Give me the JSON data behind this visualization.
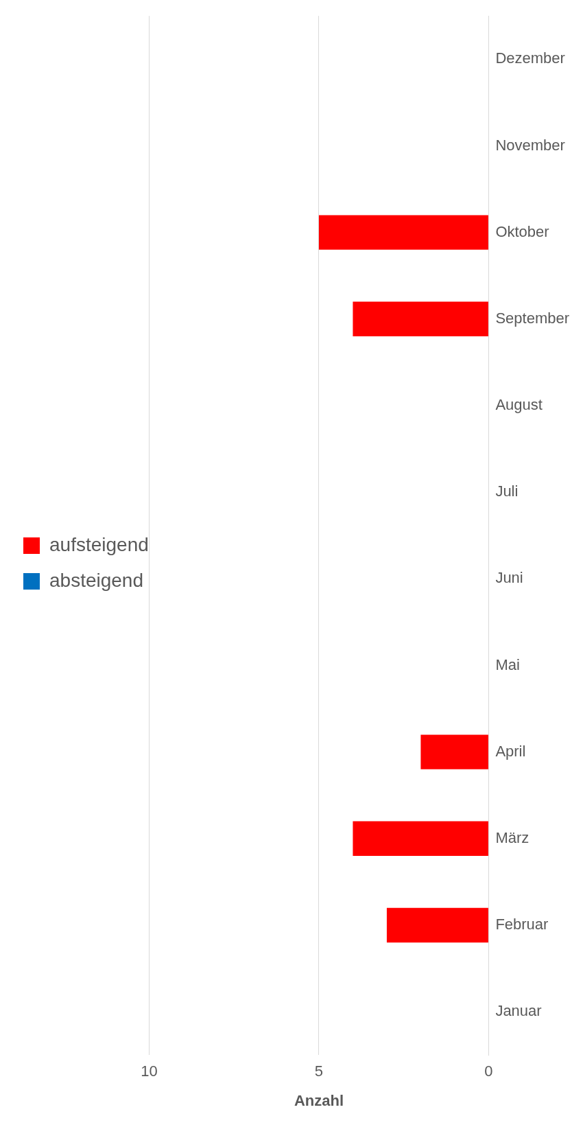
{
  "chart_data": {
    "type": "bar",
    "orientation": "horizontal",
    "xlabel": "Anzahl",
    "categories": [
      "Dezember",
      "November",
      "Oktober",
      "September",
      "August",
      "Juli",
      "Juni",
      "Mai",
      "April",
      "März",
      "Februar",
      "Januar"
    ],
    "series": [
      {
        "name": "aufsteigend",
        "color": "#ff0000",
        "values": [
          0,
          0,
          5,
          4,
          0,
          0,
          0,
          0,
          2,
          4,
          3,
          0
        ]
      },
      {
        "name": "absteigend",
        "color": "#0070c0",
        "values": [
          0,
          0,
          0,
          0,
          0,
          0,
          0,
          0,
          0,
          0,
          0,
          0
        ]
      }
    ],
    "xlim": [
      10,
      0
    ],
    "xticks": [
      10,
      5,
      0
    ],
    "grid": "x",
    "legend": "left"
  }
}
